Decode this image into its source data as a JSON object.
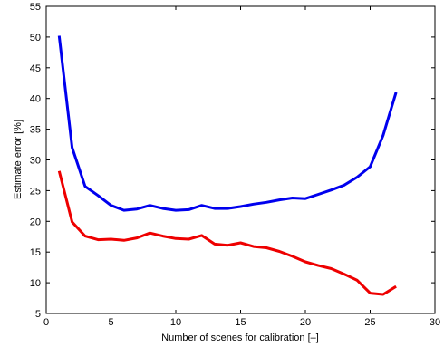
{
  "chart_data": {
    "type": "line",
    "title": "",
    "xlabel": "Number of scenes for calibration [–]",
    "ylabel": "Estimate error [%]",
    "xlim": [
      0,
      30
    ],
    "ylim": [
      5,
      55
    ],
    "xticks": [
      0,
      5,
      10,
      15,
      20,
      25,
      30
    ],
    "yticks": [
      5,
      10,
      15,
      20,
      25,
      30,
      35,
      40,
      45,
      50,
      55
    ],
    "grid": false,
    "legend": "none",
    "x": [
      1,
      2,
      3,
      4,
      5,
      6,
      7,
      8,
      9,
      10,
      11,
      12,
      13,
      14,
      15,
      16,
      17,
      18,
      19,
      20,
      21,
      22,
      23,
      24,
      25,
      26,
      27
    ],
    "series": [
      {
        "color": "#0000ee",
        "values": [
          50.2,
          32.0,
          25.7,
          24.2,
          22.6,
          21.8,
          22.0,
          22.6,
          22.1,
          21.8,
          21.9,
          22.6,
          22.1,
          22.1,
          22.4,
          22.8,
          23.1,
          23.5,
          23.8,
          23.7,
          24.4,
          25.1,
          25.9,
          27.2,
          28.9,
          34.0,
          41.0
        ]
      },
      {
        "color": "#ee0000",
        "values": [
          28.2,
          19.9,
          17.6,
          17.0,
          17.1,
          16.9,
          17.3,
          18.1,
          17.6,
          17.2,
          17.1,
          17.7,
          16.3,
          16.1,
          16.5,
          15.9,
          15.7,
          15.1,
          14.3,
          13.4,
          12.8,
          12.3,
          11.4,
          10.4,
          8.3,
          8.1,
          9.4
        ]
      }
    ]
  }
}
